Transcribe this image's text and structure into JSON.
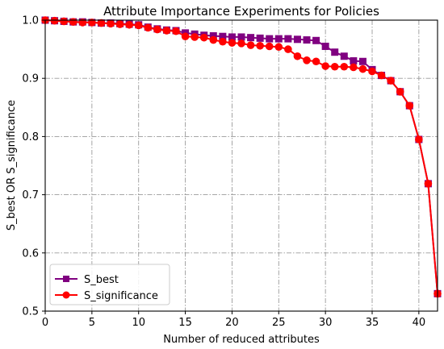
{
  "chart_data": {
    "type": "line",
    "title": "Attribute Importance Experiments for Policies",
    "xlabel": "Number of reduced attributes",
    "ylabel": "S_best OR S_significance",
    "xlim": [
      0,
      42
    ],
    "ylim": [
      0.5,
      1.0
    ],
    "xticks": [
      0,
      5,
      10,
      15,
      20,
      25,
      30,
      35,
      40
    ],
    "xtick_labels": [
      "0",
      "5",
      "10",
      "15",
      "20",
      "25",
      "30",
      "35",
      "40"
    ],
    "yticks": [
      0.5,
      0.6,
      0.7,
      0.8,
      0.9,
      1.0
    ],
    "ytick_labels": [
      "0.5",
      "0.6",
      "0.7",
      "0.8",
      "0.9",
      "1.0"
    ],
    "grid": true,
    "legend_position": "lower-left",
    "x": [
      0,
      1,
      2,
      3,
      4,
      5,
      6,
      7,
      8,
      9,
      10,
      11,
      12,
      13,
      14,
      15,
      16,
      17,
      18,
      19,
      20,
      21,
      22,
      23,
      24,
      25,
      26,
      27,
      28,
      29,
      30,
      31,
      32,
      33,
      34,
      35,
      36,
      37,
      38,
      39,
      40,
      41,
      42
    ],
    "series": [
      {
        "name": "S_best",
        "color": "#800080",
        "marker": "square",
        "values": [
          1.0,
          0.999,
          0.998,
          0.997,
          0.997,
          0.996,
          0.995,
          0.995,
          0.994,
          0.993,
          0.992,
          0.988,
          0.985,
          0.983,
          0.982,
          0.978,
          0.976,
          0.974,
          0.973,
          0.972,
          0.971,
          0.971,
          0.97,
          0.969,
          0.968,
          0.968,
          0.968,
          0.967,
          0.966,
          0.965,
          0.955,
          0.945,
          0.938,
          0.93,
          0.929,
          0.915,
          0.905,
          0.896,
          0.877,
          0.853,
          0.795,
          0.719,
          0.53
        ]
      },
      {
        "name": "S_significance",
        "color": "#ff0000",
        "marker": "circle",
        "values": [
          1.0,
          0.999,
          0.998,
          0.997,
          0.996,
          0.996,
          0.995,
          0.994,
          0.993,
          0.992,
          0.991,
          0.987,
          0.984,
          0.982,
          0.981,
          0.972,
          0.971,
          0.97,
          0.966,
          0.963,
          0.961,
          0.96,
          0.957,
          0.956,
          0.955,
          0.954,
          0.95,
          0.938,
          0.931,
          0.929,
          0.921,
          0.92,
          0.92,
          0.919,
          0.916,
          0.912,
          0.905,
          0.896,
          0.877,
          0.853,
          0.795,
          0.719,
          0.53
        ]
      }
    ]
  }
}
